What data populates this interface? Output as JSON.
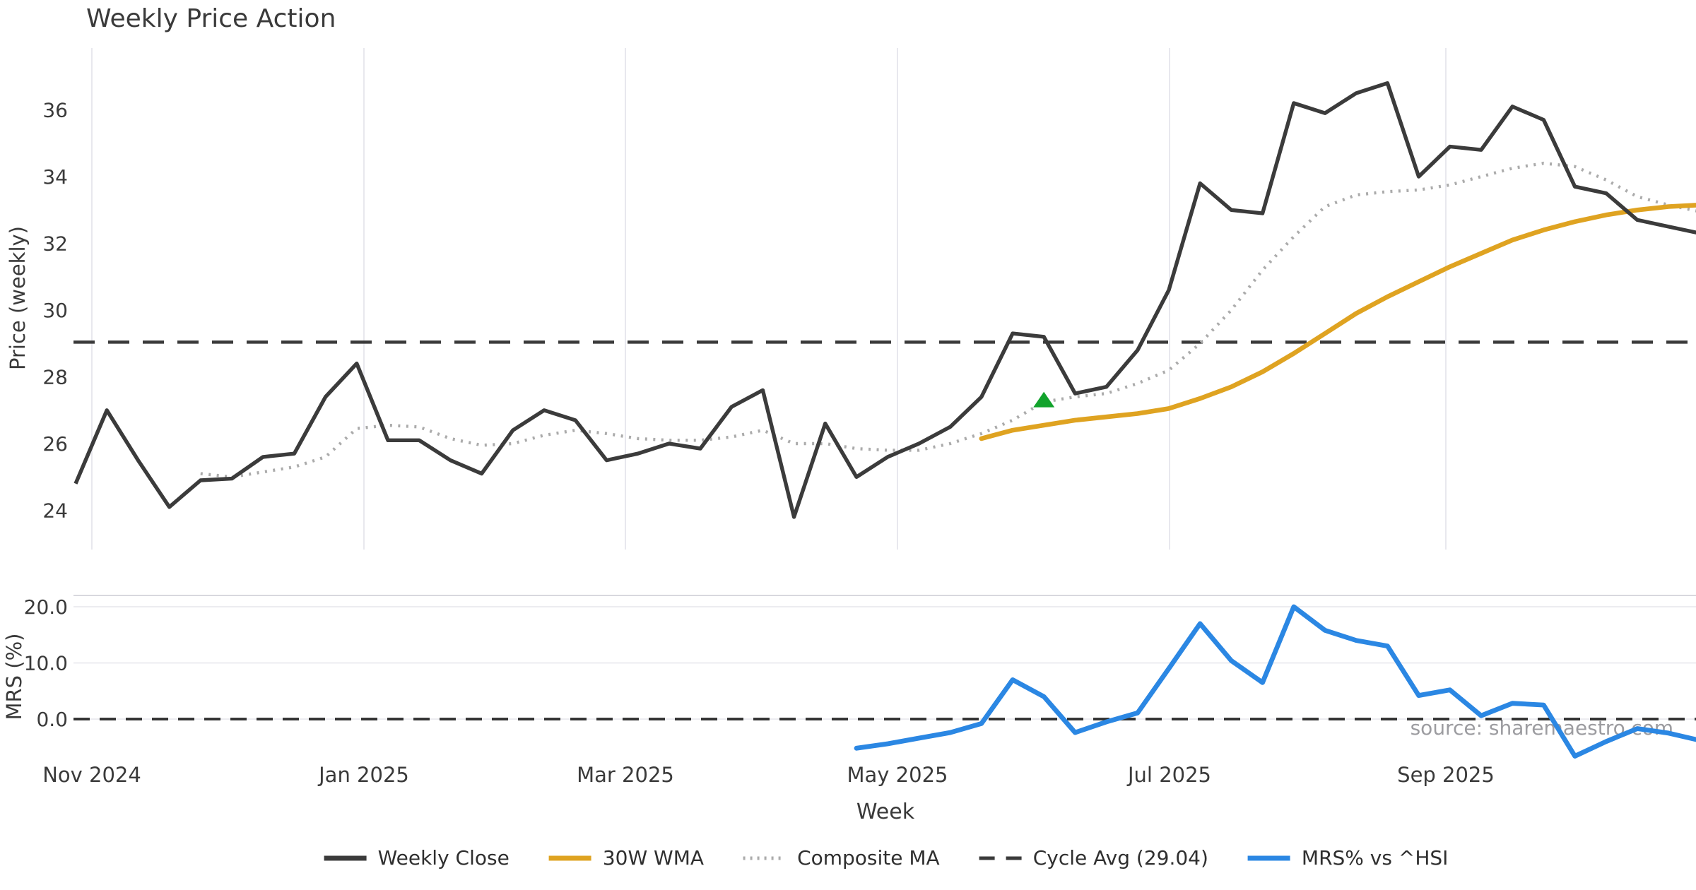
{
  "source_note": "source: sharemaestro.com",
  "chart_data": {
    "type": "line",
    "title": "Weekly Price Action",
    "xlabel": "Week",
    "x_tick_labels": [
      "Nov 2024",
      "Jan 2025",
      "Mar 2025",
      "May 2025",
      "Jul 2025",
      "Sep 2025"
    ],
    "legend_position": "bottom-center",
    "grid": "vertical-month-gridlines-price-panel, horizontal-gridlines-mrs-panel",
    "price_panel": {
      "ylabel": "Price (weekly)",
      "y_ticks": [
        36,
        34,
        32,
        30,
        28,
        26,
        24
      ],
      "ylim": [
        22.8,
        37.9
      ],
      "cycle_avg": 29.04,
      "series": [
        {
          "name": "Weekly Close",
          "color": "#3b3b3b",
          "style": "solid",
          "values": [
            24.8,
            27.0,
            25.5,
            24.1,
            24.9,
            24.95,
            25.6,
            25.7,
            27.4,
            28.4,
            26.1,
            26.1,
            25.5,
            25.1,
            26.4,
            27.0,
            26.7,
            25.5,
            25.7,
            26.0,
            25.85,
            27.1,
            27.6,
            23.8,
            26.6,
            25.0,
            25.6,
            26.0,
            26.5,
            27.4,
            29.3,
            29.2,
            27.5,
            27.7,
            28.8,
            30.6,
            33.8,
            33.0,
            32.9,
            36.2,
            35.9,
            36.5,
            36.8,
            34.0,
            34.9,
            34.8,
            36.1,
            35.7,
            33.7,
            33.5,
            32.7,
            32.5,
            32.3
          ]
        },
        {
          "name": "30W WMA",
          "color": "#dfa321",
          "style": "solid",
          "values": [
            null,
            null,
            null,
            null,
            null,
            null,
            null,
            null,
            null,
            null,
            null,
            null,
            null,
            null,
            null,
            null,
            null,
            null,
            null,
            null,
            null,
            null,
            null,
            null,
            null,
            null,
            null,
            null,
            null,
            26.15,
            26.4,
            26.55,
            26.7,
            26.8,
            26.9,
            27.05,
            27.35,
            27.7,
            28.15,
            28.7,
            29.3,
            29.9,
            30.4,
            30.85,
            31.3,
            31.7,
            32.1,
            32.4,
            32.65,
            32.85,
            33.0,
            33.1,
            33.15
          ]
        },
        {
          "name": "Composite MA",
          "color": "#ababab",
          "style": "dotted",
          "values": [
            null,
            null,
            null,
            null,
            25.1,
            25.0,
            25.15,
            25.3,
            25.6,
            26.45,
            26.55,
            26.5,
            26.15,
            25.95,
            26.0,
            26.25,
            26.4,
            26.3,
            26.15,
            26.1,
            26.1,
            26.2,
            26.4,
            26.0,
            26.0,
            25.85,
            25.8,
            25.8,
            26.0,
            26.3,
            26.7,
            27.25,
            27.4,
            27.5,
            27.8,
            28.2,
            29.0,
            30.0,
            31.2,
            32.2,
            33.1,
            33.45,
            33.55,
            33.6,
            33.75,
            34.0,
            34.25,
            34.4,
            34.3,
            33.9,
            33.4,
            33.15,
            32.95
          ]
        },
        {
          "name": "Cycle Avg (29.04)",
          "color": "#3a3a3a",
          "style": "dashed",
          "constant": 29.04
        }
      ],
      "signal_marker": {
        "shape": "triangle-up",
        "color": "#12a32c",
        "week_index": 31,
        "value": 27.3
      }
    },
    "mrs_panel": {
      "ylabel": "MRS (%)",
      "y_ticks": [
        "20.0",
        "10.0",
        "0.0"
      ],
      "ylim": [
        -7.3,
        22.0
      ],
      "zero_line": 0.0,
      "series": [
        {
          "name": "MRS% vs ^HSI",
          "color": "#2b87e3",
          "style": "solid",
          "values": [
            null,
            null,
            null,
            null,
            null,
            null,
            null,
            null,
            null,
            null,
            null,
            null,
            null,
            null,
            null,
            null,
            null,
            null,
            null,
            null,
            null,
            null,
            null,
            null,
            null,
            -5.2,
            -4.4,
            -3.4,
            -2.4,
            -0.8,
            7.0,
            4.0,
            -2.4,
            -0.5,
            1.1,
            9.0,
            17.0,
            10.4,
            6.5,
            20.0,
            15.8,
            14.0,
            13.0,
            4.2,
            5.2,
            0.6,
            2.8,
            2.5,
            -6.6,
            -4.0,
            -1.7,
            -2.5,
            -3.8
          ]
        }
      ]
    },
    "legend": [
      {
        "label": "Weekly Close",
        "color": "#3b3b3b",
        "style": "solid-thick"
      },
      {
        "label": "30W WMA",
        "color": "#dfa321",
        "style": "solid-thick"
      },
      {
        "label": "Composite MA",
        "color": "#ababab",
        "style": "dotted"
      },
      {
        "label": "Cycle Avg (29.04)",
        "color": "#3a3a3a",
        "style": "dashed"
      },
      {
        "label": "MRS% vs ^HSI",
        "color": "#2b87e3",
        "style": "solid-thick"
      }
    ]
  }
}
